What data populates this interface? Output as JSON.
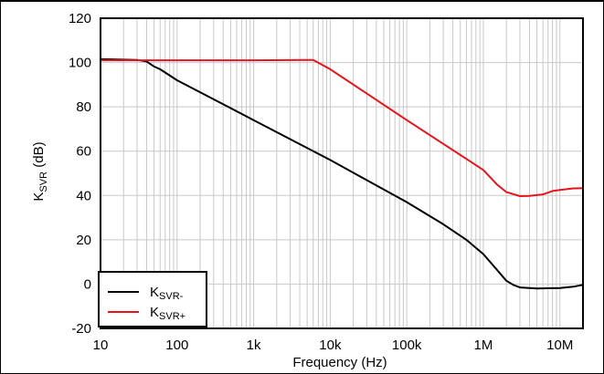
{
  "chart_data": {
    "type": "line",
    "xlabel": "Frequency (Hz)",
    "ylabel": {
      "main": "K",
      "sub": "SVR",
      "suffix": " (dB)"
    },
    "xscale": "log",
    "xlim": [
      10,
      20000000
    ],
    "ylim": [
      -20,
      120
    ],
    "grid": true,
    "legend_position": "bottom-left",
    "x_ticks": [
      {
        "value": 10,
        "label": "10"
      },
      {
        "value": 100,
        "label": "100"
      },
      {
        "value": 1000,
        "label": "1k"
      },
      {
        "value": 10000,
        "label": "10k"
      },
      {
        "value": 100000,
        "label": "100k"
      },
      {
        "value": 1000000,
        "label": "1M"
      },
      {
        "value": 10000000,
        "label": "10M"
      }
    ],
    "y_ticks": [
      {
        "value": -20,
        "label": "-20"
      },
      {
        "value": 0,
        "label": "0"
      },
      {
        "value": 20,
        "label": "20"
      },
      {
        "value": 40,
        "label": "40"
      },
      {
        "value": 60,
        "label": "60"
      },
      {
        "value": 80,
        "label": "80"
      },
      {
        "value": 100,
        "label": "100"
      },
      {
        "value": 120,
        "label": "120"
      }
    ],
    "series": [
      {
        "name": {
          "main": "K",
          "sub": "SVR-"
        },
        "color": "#000000",
        "points": [
          [
            10,
            101.5
          ],
          [
            30,
            101.2
          ],
          [
            40,
            100.5
          ],
          [
            50,
            98.2
          ],
          [
            60,
            97
          ],
          [
            100,
            92
          ],
          [
            1000,
            74
          ],
          [
            10000,
            56
          ],
          [
            100000,
            37
          ],
          [
            300000,
            27
          ],
          [
            600000,
            20
          ],
          [
            1000000,
            13.5
          ],
          [
            1500000,
            6.5
          ],
          [
            2000000,
            1.5
          ],
          [
            2500000,
            -0.5
          ],
          [
            3000000,
            -1.5
          ],
          [
            5000000,
            -2
          ],
          [
            10000000,
            -1.8
          ],
          [
            15000000,
            -1.2
          ],
          [
            20000000,
            -0.3
          ]
        ]
      },
      {
        "name": {
          "main": "K",
          "sub": "SVR+"
        },
        "color": "#e8141c",
        "points": [
          [
            10,
            101
          ],
          [
            100,
            101
          ],
          [
            1000,
            101
          ],
          [
            5000,
            101.2
          ],
          [
            6000,
            101.2
          ],
          [
            10000,
            97
          ],
          [
            100000,
            74
          ],
          [
            600000,
            56.5
          ],
          [
            1000000,
            51.5
          ],
          [
            1500000,
            45
          ],
          [
            2000000,
            41.5
          ],
          [
            3000000,
            39.7
          ],
          [
            4000000,
            39.8
          ],
          [
            6000000,
            40.5
          ],
          [
            8000000,
            42
          ],
          [
            10000000,
            42.5
          ],
          [
            15000000,
            43.2
          ],
          [
            20000000,
            43.3
          ]
        ]
      }
    ]
  }
}
